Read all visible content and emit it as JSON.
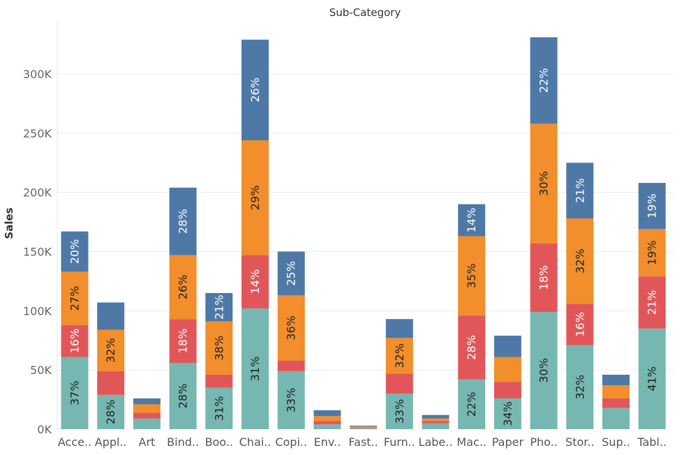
{
  "chart_data": {
    "type": "bar",
    "stacked": true,
    "title": "Sub-Category",
    "ylabel": "Sales",
    "xlabel": "",
    "ylim": [
      0,
      330000
    ],
    "yticks": [
      0,
      50000,
      100000,
      150000,
      200000,
      250000,
      300000
    ],
    "ytick_labels": [
      "0K",
      "50K",
      "100K",
      "150K",
      "200K",
      "250K",
      "300K"
    ],
    "grid": true,
    "legend": "none",
    "categories": [
      "Acce..",
      "Appl..",
      "Art",
      "Bind..",
      "Boo..",
      "Chai..",
      "Copi..",
      "Env..",
      "Fast..",
      "Furn..",
      "Labe..",
      "Mac..",
      "Paper",
      "Pho..",
      "Stor..",
      "Sup..",
      "Tabl.."
    ],
    "series": [
      {
        "color": "#76b7b2",
        "text_color": "#222222",
        "values": [
          61000,
          29000,
          9000,
          56000,
          35000,
          102000,
          49000,
          4000,
          700,
          30000,
          5000,
          42000,
          26000,
          99000,
          71000,
          18000,
          85000
        ],
        "labels": [
          "37%",
          "28%",
          "",
          "28%",
          "31%",
          "31%",
          "33%",
          "",
          "",
          "33%",
          "",
          "22%",
          "34%",
          "30%",
          "32%",
          "",
          "41%"
        ]
      },
      {
        "color": "#e15759",
        "text_color": "#ffffff",
        "values": [
          27000,
          20000,
          5000,
          37000,
          11000,
          45000,
          9000,
          3000,
          600,
          17000,
          2000,
          54000,
          14000,
          58000,
          35000,
          8000,
          44000
        ],
        "labels": [
          "16%",
          "",
          "",
          "18%",
          "",
          "14%",
          "",
          "",
          "",
          "",
          "",
          "28%",
          "",
          "18%",
          "16%",
          "",
          "21%"
        ]
      },
      {
        "color": "#f28e2b",
        "text_color": "#222222",
        "values": [
          45000,
          35000,
          7000,
          54000,
          45000,
          97000,
          55000,
          4000,
          1000,
          30000,
          2000,
          67000,
          21000,
          101000,
          72000,
          11000,
          40000
        ],
        "labels": [
          "27%",
          "32%",
          "",
          "26%",
          "38%",
          "29%",
          "36%",
          "",
          "",
          "32%",
          "",
          "35%",
          "",
          "30%",
          "32%",
          "",
          "19%"
        ]
      },
      {
        "color": "#4e79a7",
        "text_color": "#ffffff",
        "values": [
          34000,
          23000,
          5000,
          57000,
          24000,
          85000,
          37000,
          5000,
          700,
          16000,
          3000,
          27000,
          18000,
          73000,
          47000,
          9000,
          39000
        ],
        "labels": [
          "20%",
          "",
          "",
          "28%",
          "21%",
          "26%",
          "25%",
          "",
          "",
          "",
          "",
          "14%",
          "",
          "22%",
          "21%",
          "",
          "19%"
        ]
      }
    ]
  }
}
